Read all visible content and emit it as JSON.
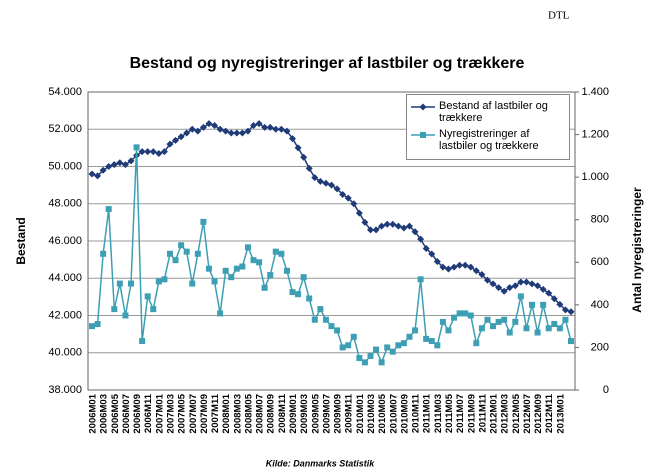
{
  "logo": "DTL",
  "chart_data": {
    "type": "line",
    "title": "Bestand og nyregistreringer af lastbiler og trækkere",
    "ylabel": "Bestand",
    "y2label": "Antal nyregistreringer",
    "source": "Kilde: Danmarks Statistik",
    "categories": [
      "2006M01",
      null,
      "2006M03",
      null,
      "2006M05",
      null,
      "2006M07",
      null,
      "2006M09",
      null,
      "2006M11",
      null,
      "2007M01",
      null,
      "2007M03",
      null,
      "2007M05",
      null,
      "2007M07",
      null,
      "2007M09",
      null,
      "2007M11",
      null,
      "2008M01",
      null,
      "2008M03",
      null,
      "2008M05",
      null,
      "2008M07",
      null,
      "2008M09",
      null,
      "2008M11",
      null,
      "2009M01",
      null,
      "2009M03",
      null,
      "2009M05",
      null,
      "2009M07",
      null,
      "2009M09",
      null,
      "2009M11",
      null,
      "2010M01",
      null,
      "2010M03",
      null,
      "2010M05",
      null,
      "2010M07",
      null,
      "2010M09",
      null,
      "2010M11",
      null,
      "2011M01",
      null,
      "2011M03",
      null,
      "2011M05",
      null,
      "2011M07",
      null,
      "2011M09",
      null,
      "2011M11",
      null,
      "2012M01",
      null,
      "2012M03",
      null,
      "2012M05",
      null,
      "2012M07",
      null,
      "2012M09",
      null,
      "2012M11",
      null,
      "2013M01",
      null,
      null
    ],
    "series": [
      {
        "name": "Bestand af lastbiler og trækkere",
        "color": "#1f3b78",
        "marker": "diamond",
        "values": [
          49600,
          49500,
          49800,
          50000,
          50100,
          50200,
          50100,
          50300,
          50600,
          50800,
          50800,
          50800,
          50700,
          50800,
          51200,
          51400,
          51600,
          51800,
          52000,
          51900,
          52100,
          52300,
          52200,
          52000,
          51900,
          51800,
          51800,
          51800,
          51900,
          52200,
          52300,
          52100,
          52100,
          52000,
          52000,
          51900,
          51500,
          51000,
          50500,
          49900,
          49400,
          49200,
          49100,
          49000,
          48800,
          48500,
          48300,
          48000,
          47500,
          47000,
          46600,
          46600,
          46800,
          46900,
          46900,
          46800,
          46700,
          46800,
          46500,
          46100,
          45600,
          45300,
          44900,
          44600,
          44500,
          44600,
          44700,
          44700,
          44600,
          44400,
          44200,
          43900,
          43700,
          43500,
          43300,
          43500,
          43600,
          43800,
          43800,
          43700,
          43600,
          43400,
          43200,
          42900,
          42600,
          42300,
          42200
        ]
      },
      {
        "name": "Nyregistreringer af lastbiler og trækkere",
        "color": "#3d9fb3",
        "marker": "square",
        "axis": "y2",
        "values": [
          300,
          310,
          640,
          850,
          380,
          500,
          350,
          500,
          1140,
          230,
          440,
          380,
          510,
          520,
          640,
          610,
          680,
          650,
          500,
          640,
          790,
          570,
          510,
          360,
          560,
          530,
          570,
          580,
          670,
          610,
          600,
          480,
          540,
          650,
          640,
          560,
          460,
          450,
          530,
          430,
          330,
          380,
          330,
          300,
          280,
          200,
          210,
          250,
          150,
          130,
          160,
          190,
          130,
          200,
          180,
          210,
          220,
          250,
          280,
          520,
          240,
          230,
          210,
          320,
          280,
          340,
          360,
          360,
          350,
          220,
          290,
          330,
          300,
          320,
          330,
          270,
          320,
          440,
          290,
          400,
          270,
          400,
          290,
          310,
          290,
          330,
          230
        ]
      }
    ],
    "ylim": [
      38000,
      54000
    ],
    "yticks": [
      {
        "value": 38000,
        "label": "38.000"
      },
      {
        "value": 40000,
        "label": "40.000"
      },
      {
        "value": 42000,
        "label": "42.000"
      },
      {
        "value": 44000,
        "label": "44.000"
      },
      {
        "value": 46000,
        "label": "46.000"
      },
      {
        "value": 48000,
        "label": "48.000"
      },
      {
        "value": 50000,
        "label": "50.000"
      },
      {
        "value": 52000,
        "label": "52.000"
      },
      {
        "value": 54000,
        "label": "54.000"
      }
    ],
    "y2lim": [
      0,
      1400
    ],
    "y2ticks": [
      0,
      200,
      400,
      600,
      800,
      {
        "value": 1000,
        "label": "1.000"
      },
      {
        "value": 1200,
        "label": "1.200"
      },
      {
        "value": 1400,
        "label": "1.400"
      }
    ],
    "grid": true,
    "legend": "upper right"
  }
}
